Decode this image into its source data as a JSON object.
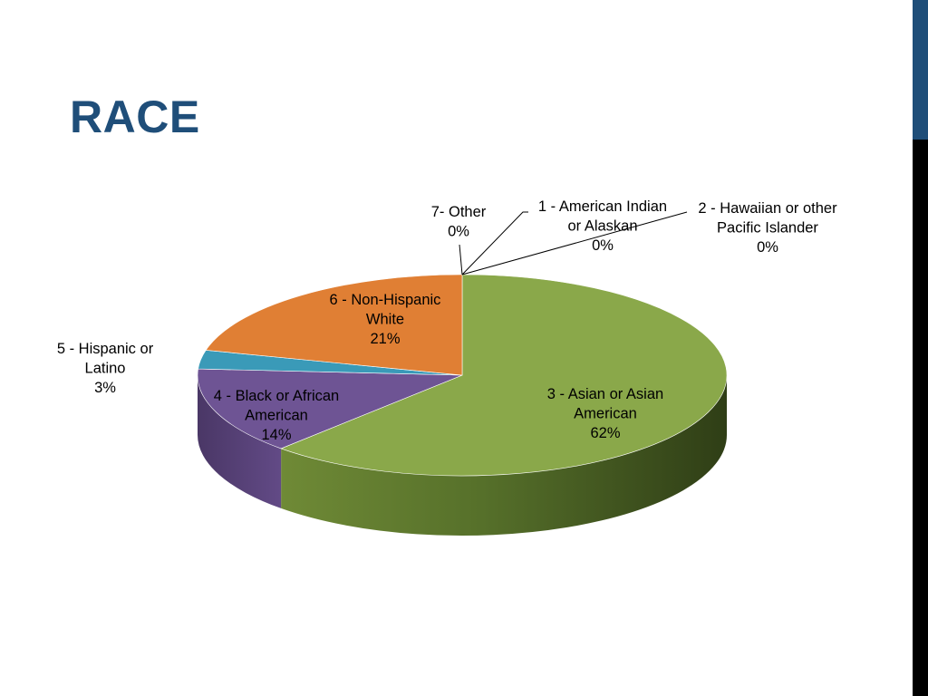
{
  "slide": {
    "title": "RACE"
  },
  "colors": {
    "title": "#1f4e79",
    "sidebar_top": "#1f4e79",
    "sidebar_bottom": "#000000"
  },
  "chart_data": {
    "type": "pie",
    "style": "3d",
    "title": "",
    "slices": [
      {
        "name": "1 - American Indian or Alaskan",
        "value": 0,
        "label_lines": [
          "1 - American Indian",
          "or Alaskan",
          "0%"
        ],
        "color": "#4f81bd"
      },
      {
        "name": "2 - Hawaiian or other Pacific Islander",
        "value": 0,
        "label_lines": [
          "2 - Hawaiian or other",
          "Pacific Islander",
          "0%"
        ],
        "color": "#c0504d"
      },
      {
        "name": "3 - Asian or Asian American",
        "value": 62,
        "label_lines": [
          "3 - Asian or Asian",
          "American",
          "62%"
        ],
        "color": "#8aa84a"
      },
      {
        "name": "4 - Black or African American",
        "value": 14,
        "label_lines": [
          "4 - Black or African",
          "American",
          "14%"
        ],
        "color": "#6e5494"
      },
      {
        "name": "5 - Hispanic or Latino",
        "value": 3,
        "label_lines": [
          "5 - Hispanic or",
          "Latino",
          "3%"
        ],
        "color": "#3a9ab8"
      },
      {
        "name": "6 - Non-Hispanic White",
        "value": 21,
        "label_lines": [
          "6 - Non-Hispanic",
          "White",
          "21%"
        ],
        "color": "#e07f34"
      },
      {
        "name": "7- Other",
        "value": 0,
        "label_lines": [
          "7- Other",
          "0%"
        ],
        "color": "#9bbb59"
      }
    ],
    "legend": "none"
  }
}
